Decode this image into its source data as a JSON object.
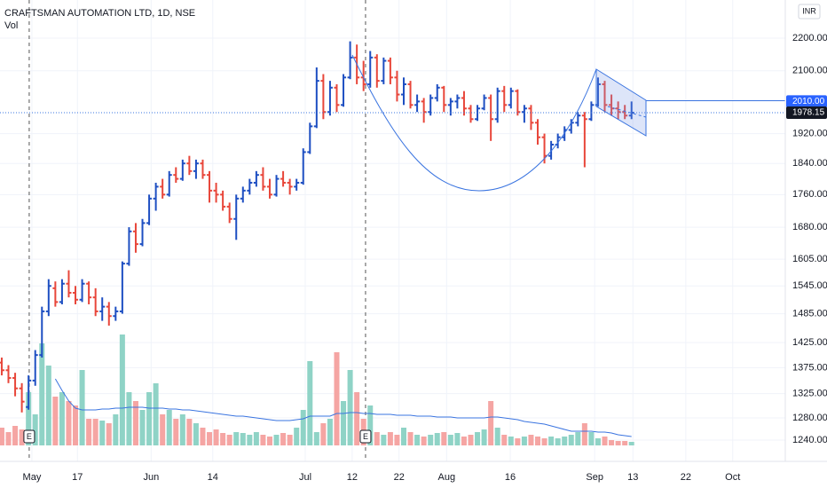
{
  "chart_data": {
    "type": "ohlc",
    "title": "CRAFTSMAN AUTOMATION LTD, 1D, NSE",
    "indicator": "Vol",
    "currency": "INR",
    "log_scale": true,
    "grid": true,
    "colors": {
      "up": "#1e4fc2",
      "down": "#e8463a",
      "volume_up": "#8fd3c6",
      "volume_down": "#f5a5a3",
      "volume_ma": "#3a74e0"
    },
    "ylim": [
      1203,
      2323
    ],
    "yticks": [
      {
        "value": 2200,
        "label": "2200.00"
      },
      {
        "value": 2100,
        "label": "2100.00"
      },
      {
        "value": 1920,
        "label": "1920.00"
      },
      {
        "value": 1840,
        "label": "1840.00"
      },
      {
        "value": 1760,
        "label": "1760.00"
      },
      {
        "value": 1680,
        "label": "1680.00"
      },
      {
        "value": 1605,
        "label": "1605.00"
      },
      {
        "value": 1545,
        "label": "1545.00"
      },
      {
        "value": 1485,
        "label": "1485.00"
      },
      {
        "value": 1425,
        "label": "1425.00"
      },
      {
        "value": 1375,
        "label": "1375.00"
      },
      {
        "value": 1325,
        "label": "1325.00"
      },
      {
        "value": 1280,
        "label": "1280.00"
      },
      {
        "value": 1240,
        "label": "1240.00"
      }
    ],
    "xlim": [
      -0.26,
      116.95
    ],
    "xticks": [
      {
        "value": 4.5,
        "label": "May"
      },
      {
        "value": 11.3,
        "label": "17"
      },
      {
        "value": 22.3,
        "label": "Jun"
      },
      {
        "value": 31.5,
        "label": "14"
      },
      {
        "value": 45.3,
        "label": "Jul"
      },
      {
        "value": 52.3,
        "label": "12"
      },
      {
        "value": 59.3,
        "label": "22"
      },
      {
        "value": 66.4,
        "label": "Aug"
      },
      {
        "value": 75.9,
        "label": "16"
      },
      {
        "value": 88.5,
        "label": "Sep"
      },
      {
        "value": 94.2,
        "label": "13"
      },
      {
        "value": 102.1,
        "label": "22"
      },
      {
        "value": 109.1,
        "label": "Oct"
      }
    ],
    "price_labels": [
      {
        "value": 2010,
        "label": "2010.00"
      },
      {
        "value": 1978.15,
        "label": "1978.15"
      }
    ],
    "events": [
      {
        "x": 4.1,
        "label": "E"
      },
      {
        "x": 54.3,
        "label": "E"
      }
    ],
    "ohlc": [
      [
        1385,
        1395,
        1360,
        1370
      ],
      [
        1370,
        1380,
        1345,
        1355
      ],
      [
        1355,
        1365,
        1320,
        1335
      ],
      [
        1335,
        1345,
        1290,
        1310
      ],
      [
        1300,
        1360,
        1295,
        1350
      ],
      [
        1350,
        1410,
        1340,
        1400
      ],
      [
        1400,
        1500,
        1395,
        1490
      ],
      [
        1490,
        1560,
        1480,
        1545
      ],
      [
        1540,
        1555,
        1500,
        1510
      ],
      [
        1510,
        1560,
        1505,
        1550
      ],
      [
        1550,
        1580,
        1520,
        1530
      ],
      [
        1530,
        1545,
        1505,
        1515
      ],
      [
        1515,
        1560,
        1510,
        1550
      ],
      [
        1550,
        1555,
        1505,
        1520
      ],
      [
        1520,
        1540,
        1480,
        1490
      ],
      [
        1490,
        1520,
        1470,
        1500
      ],
      [
        1500,
        1510,
        1460,
        1480
      ],
      [
        1480,
        1500,
        1470,
        1490
      ],
      [
        1490,
        1600,
        1485,
        1595
      ],
      [
        1595,
        1680,
        1590,
        1670
      ],
      [
        1670,
        1690,
        1620,
        1640
      ],
      [
        1640,
        1700,
        1635,
        1690
      ],
      [
        1690,
        1760,
        1685,
        1750
      ],
      [
        1750,
        1790,
        1720,
        1780
      ],
      [
        1780,
        1800,
        1750,
        1760
      ],
      [
        1760,
        1820,
        1755,
        1810
      ],
      [
        1810,
        1830,
        1790,
        1800
      ],
      [
        1800,
        1850,
        1795,
        1840
      ],
      [
        1840,
        1860,
        1810,
        1820
      ],
      [
        1820,
        1850,
        1800,
        1840
      ],
      [
        1840,
        1850,
        1800,
        1810
      ],
      [
        1810,
        1820,
        1740,
        1770
      ],
      [
        1770,
        1790,
        1740,
        1760
      ],
      [
        1760,
        1770,
        1720,
        1730
      ],
      [
        1730,
        1740,
        1690,
        1700
      ],
      [
        1700,
        1760,
        1650,
        1750
      ],
      [
        1750,
        1780,
        1740,
        1770
      ],
      [
        1770,
        1800,
        1760,
        1790
      ],
      [
        1790,
        1820,
        1780,
        1810
      ],
      [
        1810,
        1830,
        1770,
        1780
      ],
      [
        1780,
        1800,
        1750,
        1760
      ],
      [
        1760,
        1810,
        1755,
        1800
      ],
      [
        1800,
        1820,
        1780,
        1790
      ],
      [
        1790,
        1800,
        1760,
        1780
      ],
      [
        1780,
        1800,
        1770,
        1790
      ],
      [
        1790,
        1880,
        1785,
        1870
      ],
      [
        1870,
        1950,
        1865,
        1940
      ],
      [
        1940,
        2110,
        1935,
        2070
      ],
      [
        2070,
        2090,
        1960,
        1980
      ],
      [
        1980,
        2070,
        1970,
        2050
      ],
      [
        2050,
        2060,
        1980,
        2000
      ],
      [
        2000,
        2090,
        1995,
        2080
      ],
      [
        2080,
        2190,
        2075,
        2140
      ],
      [
        2140,
        2180,
        2060,
        2080
      ],
      [
        2080,
        2130,
        2040,
        2060
      ],
      [
        2060,
        2160,
        2050,
        2140
      ],
      [
        2140,
        2150,
        2050,
        2070
      ],
      [
        2070,
        2140,
        2060,
        2130
      ],
      [
        2130,
        2140,
        2060,
        2080
      ],
      [
        2080,
        2100,
        2010,
        2030
      ],
      [
        2030,
        2080,
        2000,
        2060
      ],
      [
        2060,
        2070,
        1990,
        2000
      ],
      [
        2000,
        2030,
        1980,
        2010
      ],
      [
        2010,
        2020,
        1950,
        1980
      ],
      [
        1980,
        2030,
        1970,
        2020
      ],
      [
        2020,
        2060,
        2010,
        2050
      ],
      [
        2050,
        2055,
        1980,
        2000
      ],
      [
        2000,
        2020,
        1970,
        2010
      ],
      [
        2010,
        2030,
        1990,
        2020
      ],
      [
        2020,
        2040,
        1970,
        1990
      ],
      [
        1990,
        2000,
        1950,
        1960
      ],
      [
        1960,
        2000,
        1955,
        1990
      ],
      [
        1990,
        2030,
        1985,
        2020
      ],
      [
        2020,
        2030,
        1900,
        1960
      ],
      [
        1960,
        2050,
        1950,
        2040
      ],
      [
        2040,
        2055,
        1980,
        2000
      ],
      [
        2000,
        2050,
        1990,
        2040
      ],
      [
        2040,
        2045,
        1970,
        1980
      ],
      [
        1980,
        2000,
        1950,
        1990
      ],
      [
        1990,
        2000,
        1930,
        1950
      ],
      [
        1950,
        1960,
        1890,
        1910
      ],
      [
        1910,
        1920,
        1840,
        1860
      ],
      [
        1860,
        1900,
        1850,
        1890
      ],
      [
        1890,
        1920,
        1880,
        1910
      ],
      [
        1910,
        1940,
        1900,
        1930
      ],
      [
        1930,
        1960,
        1920,
        1950
      ],
      [
        1950,
        1980,
        1940,
        1970
      ],
      [
        1970,
        1980,
        1830,
        1960
      ],
      [
        1960,
        2010,
        1955,
        2000
      ],
      [
        2000,
        2080,
        1995,
        2060
      ],
      [
        2060,
        2070,
        1980,
        2000
      ],
      [
        2000,
        2030,
        1970,
        1990
      ],
      [
        1990,
        2010,
        1960,
        1980
      ],
      [
        1980,
        2000,
        1960,
        1970
      ],
      [
        1970,
        2010,
        1960,
        1978
      ]
    ],
    "volume_lim": [
      0,
      130
    ],
    "volume": [
      20,
      15,
      22,
      18,
      60,
      35,
      115,
      90,
      55,
      60,
      50,
      45,
      85,
      30,
      30,
      28,
      25,
      35,
      125,
      60,
      50,
      40,
      60,
      70,
      35,
      40,
      30,
      35,
      30,
      25,
      20,
      15,
      18,
      14,
      12,
      15,
      14,
      12,
      15,
      12,
      10,
      12,
      14,
      12,
      20,
      40,
      95,
      15,
      25,
      30,
      105,
      50,
      85,
      60,
      30,
      45,
      15,
      12,
      15,
      12,
      20,
      15,
      12,
      10,
      12,
      14,
      15,
      12,
      14,
      10,
      12,
      15,
      18,
      50,
      20,
      12,
      10,
      8,
      10,
      12,
      10,
      8,
      10,
      8,
      10,
      12,
      15,
      25,
      15,
      8,
      10,
      6,
      5,
      5,
      4
    ],
    "volume_ma": [
      null,
      null,
      null,
      null,
      null,
      null,
      null,
      null,
      75,
      62,
      50,
      42,
      40,
      40,
      40,
      41,
      41,
      42,
      42,
      43,
      43,
      43,
      42,
      42,
      42,
      41,
      41,
      40,
      40,
      39,
      38,
      37,
      36,
      35,
      34,
      33,
      33,
      32,
      31,
      30,
      29,
      28,
      28,
      28,
      29,
      30,
      33,
      33,
      33,
      33,
      36,
      36,
      37,
      37,
      36,
      36,
      35,
      35,
      35,
      34,
      34,
      34,
      33,
      33,
      33,
      32,
      32,
      32,
      31,
      31,
      31,
      31,
      31,
      32,
      32,
      31,
      30,
      29,
      27,
      26,
      25,
      24,
      22,
      20,
      18,
      16,
      16,
      16,
      16,
      15,
      15,
      14,
      12,
      11,
      10
    ]
  }
}
